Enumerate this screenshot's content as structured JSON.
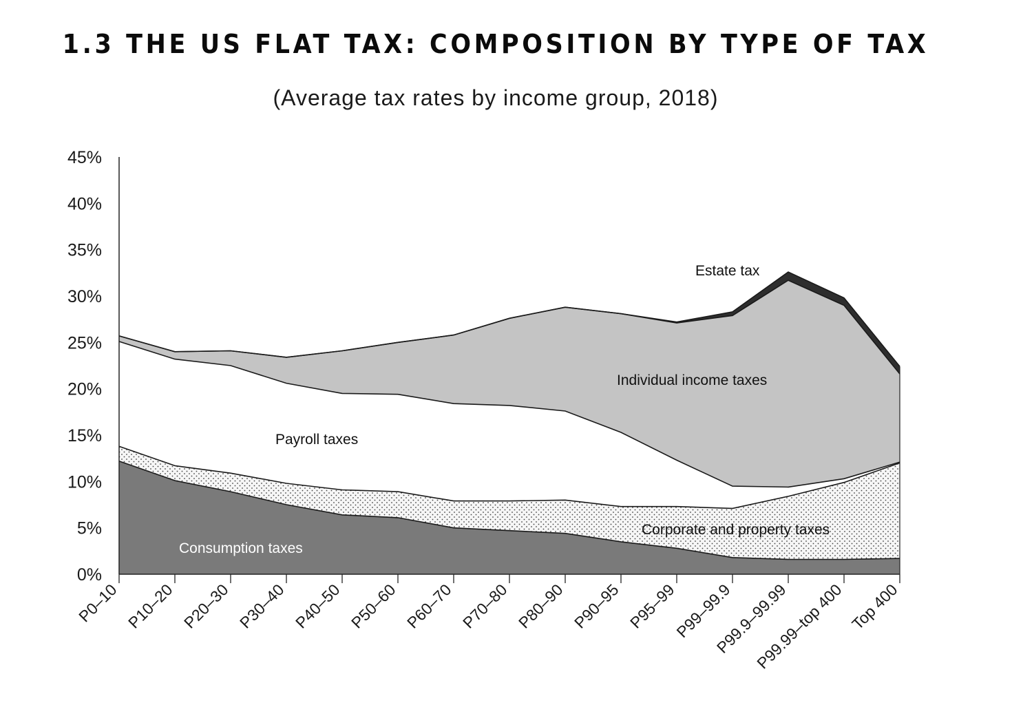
{
  "title": "1.3 THE US FLAT TAX: COMPOSITION BY TYPE OF TAX",
  "subtitle": "(Average tax rates by income group, 2018)",
  "chart_data": {
    "type": "area",
    "stacked": true,
    "categories": [
      "P0–10",
      "P10–20",
      "P20–30",
      "P30–40",
      "P40–50",
      "P50–60",
      "P60–70",
      "P70–80",
      "P80–90",
      "P90–95",
      "P95–99",
      "P99–99.9",
      "P99.9–99.99",
      "P99.99–top 400",
      "Top 400"
    ],
    "series": [
      {
        "name": "Consumption taxes",
        "values": [
          12.2,
          10.1,
          8.9,
          7.5,
          6.4,
          6.1,
          5.0,
          4.7,
          4.4,
          3.5,
          2.8,
          1.8,
          1.6,
          1.6,
          1.7
        ]
      },
      {
        "name": "Corporate and property taxes",
        "values": [
          1.6,
          1.6,
          2.0,
          2.3,
          2.7,
          2.8,
          2.9,
          3.2,
          3.6,
          3.8,
          4.5,
          5.3,
          6.8,
          8.3,
          10.3
        ]
      },
      {
        "name": "Payroll taxes",
        "values": [
          11.3,
          11.5,
          11.6,
          10.8,
          10.4,
          10.5,
          10.5,
          10.3,
          9.6,
          8.0,
          5.0,
          2.4,
          1.0,
          0.4,
          0.1
        ]
      },
      {
        "name": "Individual income taxes",
        "values": [
          0.6,
          0.8,
          1.6,
          2.8,
          4.6,
          5.6,
          7.4,
          9.4,
          11.2,
          12.8,
          14.8,
          18.4,
          22.3,
          18.7,
          9.5
        ]
      },
      {
        "name": "Estate tax",
        "values": [
          0.0,
          0.0,
          0.0,
          0.0,
          0.0,
          0.0,
          0.0,
          0.0,
          0.0,
          0.0,
          0.1,
          0.4,
          0.9,
          0.8,
          0.8
        ]
      }
    ],
    "series_labels": {
      "consumption": "Consumption taxes",
      "corporate": "Corporate and property taxes",
      "payroll": "Payroll taxes",
      "income": "Individual income taxes",
      "estate": "Estate tax"
    },
    "ytick_labels": [
      "0%",
      "5%",
      "10%",
      "15%",
      "20%",
      "25%",
      "30%",
      "35%",
      "40%",
      "45%"
    ],
    "ylim": [
      0,
      45
    ],
    "xlabel": "",
    "ylabel": "",
    "colors": {
      "consumption": "#7a7a7a",
      "corporate": "#f4f4f4",
      "payroll": "#ffffff",
      "income": "#c4c4c4",
      "estate": "#2e2e2e",
      "line": "#1a1a1a"
    }
  }
}
